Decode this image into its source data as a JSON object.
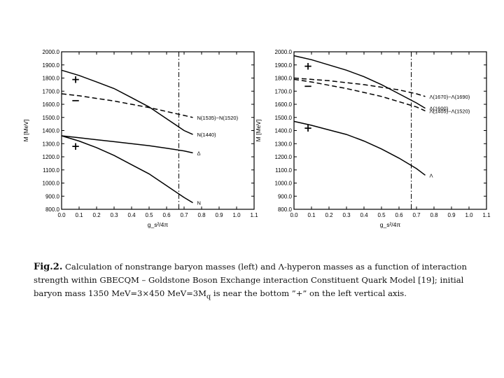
{
  "chart_data": [
    {
      "type": "line",
      "panel": "left",
      "title": "",
      "xlabel": "g_s²/4π",
      "ylabel": "M [MeV]",
      "xlim": [
        0.0,
        1.1
      ],
      "ylim": [
        800.0,
        2000.0
      ],
      "x_ticks": [
        "0.0",
        "0.1",
        "0.2",
        "0.3",
        "0.4",
        "0.5",
        "0.6",
        "0.7",
        "0.8",
        "0.9",
        "1.0",
        "1.1"
      ],
      "y_ticks": [
        "800.0",
        "900.0",
        "1000.0",
        "1100.0",
        "1200.0",
        "1300.0",
        "1400.0",
        "1500.0",
        "1600.0",
        "1700.0",
        "1800.0",
        "1900.0",
        "2000.0"
      ],
      "vertical_line_x": 0.67,
      "grid": false,
      "series": [
        {
          "name": "N(1535)−N(1520)",
          "style": "dashed",
          "x": [
            0.0,
            0.1,
            0.2,
            0.3,
            0.4,
            0.5,
            0.6,
            0.7,
            0.75
          ],
          "y": [
            1680,
            1665,
            1645,
            1625,
            1600,
            1575,
            1545,
            1515,
            1500
          ]
        },
        {
          "name": "N(1440)",
          "style": "solid",
          "x": [
            0.0,
            0.1,
            0.2,
            0.3,
            0.4,
            0.5,
            0.6,
            0.7,
            0.75
          ],
          "y": [
            1860,
            1820,
            1770,
            1720,
            1650,
            1580,
            1490,
            1400,
            1370
          ]
        },
        {
          "name": "Δ",
          "style": "solid",
          "x": [
            0.0,
            0.1,
            0.2,
            0.3,
            0.4,
            0.5,
            0.6,
            0.7,
            0.75
          ],
          "y": [
            1360,
            1345,
            1330,
            1315,
            1300,
            1285,
            1265,
            1245,
            1230
          ]
        },
        {
          "name": "N",
          "style": "solid",
          "x": [
            0.0,
            0.1,
            0.2,
            0.3,
            0.4,
            0.5,
            0.6,
            0.7,
            0.75
          ],
          "y": [
            1360,
            1320,
            1270,
            1210,
            1140,
            1070,
            980,
            890,
            850
          ]
        }
      ],
      "sign_marks": [
        {
          "text": "+",
          "x": 0.08,
          "y": 1790
        },
        {
          "text": "−",
          "x": 0.08,
          "y": 1630
        },
        {
          "text": "+",
          "x": 0.08,
          "y": 1280
        }
      ]
    },
    {
      "type": "line",
      "panel": "right",
      "title": "",
      "xlabel": "g_s²/4π",
      "ylabel": "M [MeV]",
      "xlim": [
        0.0,
        1.1
      ],
      "ylim": [
        800.0,
        2000.0
      ],
      "x_ticks": [
        "0.0",
        "0.1",
        "0.2",
        "0.3",
        "0.4",
        "0.5",
        "0.6",
        "0.7",
        "0.8",
        "0.9",
        "1.0",
        "1.1"
      ],
      "y_ticks": [
        "800.0",
        "900.0",
        "1000.0",
        "1100.0",
        "1200.0",
        "1300.0",
        "1400.0",
        "1500.0",
        "1600.0",
        "1700.0",
        "1800.0",
        "1900.0",
        "2000.0"
      ],
      "vertical_line_x": 0.67,
      "grid": false,
      "series": [
        {
          "name": "Λ(1670)−Λ(1690)",
          "style": "dashed",
          "x": [
            0.0,
            0.1,
            0.2,
            0.3,
            0.4,
            0.5,
            0.6,
            0.7,
            0.75
          ],
          "y": [
            1800,
            1790,
            1780,
            1765,
            1750,
            1730,
            1710,
            1680,
            1660
          ]
        },
        {
          "name": "Λ(1600)",
          "style": "solid",
          "x": [
            0.0,
            0.1,
            0.2,
            0.3,
            0.4,
            0.5,
            0.6,
            0.7,
            0.75
          ],
          "y": [
            1970,
            1940,
            1900,
            1860,
            1810,
            1750,
            1680,
            1610,
            1570
          ]
        },
        {
          "name": "Λ(1405)−Λ(1520)",
          "style": "dashed",
          "x": [
            0.0,
            0.1,
            0.2,
            0.3,
            0.4,
            0.5,
            0.6,
            0.7,
            0.75
          ],
          "y": [
            1790,
            1770,
            1745,
            1720,
            1690,
            1660,
            1620,
            1580,
            1550
          ]
        },
        {
          "name": "Λ",
          "style": "solid",
          "x": [
            0.0,
            0.1,
            0.2,
            0.3,
            0.4,
            0.5,
            0.6,
            0.7,
            0.75
          ],
          "y": [
            1470,
            1440,
            1405,
            1370,
            1320,
            1260,
            1190,
            1110,
            1060
          ]
        }
      ],
      "sign_marks": [
        {
          "text": "+",
          "x": 0.08,
          "y": 1890
        },
        {
          "text": "−",
          "x": 0.08,
          "y": 1740
        },
        {
          "text": "+",
          "x": 0.08,
          "y": 1420
        }
      ]
    }
  ],
  "caption": {
    "label": "Fig.2.",
    "text": "Calculation of nonstrange baryon masses (left) and Λ-hyperon masses as a function of interaction strength within GBECQM – Goldstone Boson Exchange interaction Constituent Quark Model [19]; initial baryon mass 1350 MeV=3×450 MeV=3M",
    "subscript": "q",
    "text_end": " is near the bottom ”+” on the left vertical axis."
  }
}
